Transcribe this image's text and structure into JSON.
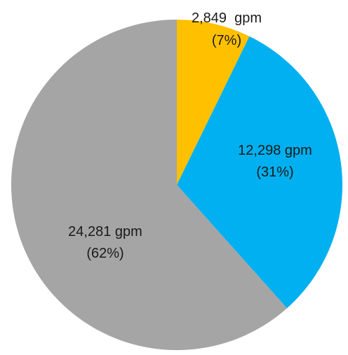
{
  "chart_data": {
    "type": "pie",
    "title": "",
    "unit": "gpm",
    "start_angle_deg": 0,
    "direction": "clockwise",
    "slices": [
      {
        "value": 2849,
        "value_label": "2,849  gpm",
        "percent_label": "(7%)",
        "color": "#FFC000"
      },
      {
        "value": 12298,
        "value_label": "12,298 gpm",
        "percent_label": "(31%)",
        "color": "#00B0F0"
      },
      {
        "value": 24281,
        "value_label": "24,281 gpm",
        "percent_label": "(62%)",
        "color": "#A5A5A5"
      }
    ]
  }
}
